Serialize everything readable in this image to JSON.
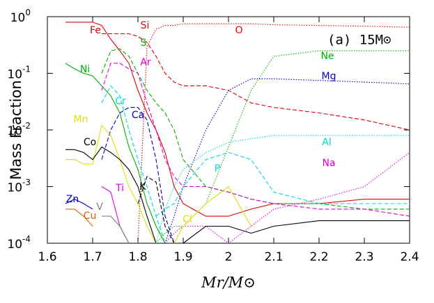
{
  "chart_data": {
    "type": "line",
    "ylabel": "Mass Fraction",
    "xlabel": "Mr/M⊙",
    "annotation": "(a) 15M⊙",
    "log_y": true,
    "xlim": [
      1.6,
      2.4
    ],
    "ylim": [
      0.0001,
      1
    ],
    "xticks": [
      1.6,
      1.7,
      1.8,
      1.9,
      2,
      2.1,
      2.2,
      2.3,
      2.4
    ],
    "yticks": [
      {
        "value": 0.0001,
        "label": "10^-4"
      },
      {
        "value": 0.001,
        "label": "10^-3"
      },
      {
        "value": 0.01,
        "label": "10^-2"
      },
      {
        "value": 0.1,
        "label": "10^-1"
      },
      {
        "value": 1,
        "label": "10^0"
      }
    ],
    "x": [
      1.64,
      1.66,
      1.68,
      1.7,
      1.72,
      1.74,
      1.76,
      1.78,
      1.8,
      1.82,
      1.84,
      1.86,
      1.88,
      1.9,
      1.95,
      2.0,
      2.05,
      2.1,
      2.2,
      2.3,
      2.4
    ],
    "series": [
      {
        "name": "Fe",
        "color": "#e00000",
        "style": "solid",
        "values": [
          0.8,
          0.8,
          0.8,
          0.8,
          0.7,
          0.4,
          0.25,
          0.15,
          0.05,
          0.02,
          0.01,
          0.004,
          0.001,
          0.0005,
          0.0003,
          0.0003,
          0.0004,
          0.0005,
          0.0005,
          0.0006,
          0.0006
        ]
      },
      {
        "name": "Si",
        "color": "#e00000",
        "style": "dashed",
        "values": [
          null,
          null,
          null,
          null,
          0.5,
          0.5,
          0.5,
          0.5,
          0.45,
          0.35,
          0.2,
          0.1,
          0.07,
          0.06,
          0.06,
          0.05,
          0.03,
          0.025,
          0.02,
          0.015,
          0.01
        ]
      },
      {
        "name": "O",
        "color": "#e00000",
        "style": "dotted",
        "values": [
          null,
          null,
          null,
          null,
          null,
          null,
          null,
          null,
          0.0001,
          0.3,
          0.6,
          0.7,
          0.7,
          0.75,
          0.75,
          0.75,
          0.75,
          0.72,
          0.7,
          0.68,
          0.65
        ]
      },
      {
        "name": "S",
        "color": "#00b000",
        "style": "dashed",
        "values": [
          null,
          null,
          null,
          null,
          0.1,
          0.25,
          0.27,
          0.2,
          0.1,
          0.05,
          0.03,
          0.02,
          0.01,
          0.003,
          0.001,
          0.0008,
          0.0006,
          0.0005,
          0.0005,
          0.0004,
          0.0004
        ]
      },
      {
        "name": "Ne",
        "color": "#00b000",
        "style": "dotted",
        "values": [
          null,
          null,
          null,
          null,
          null,
          null,
          null,
          null,
          null,
          null,
          0.0001,
          0.00015,
          0.0002,
          0.0002,
          0.0005,
          0.005,
          0.05,
          0.2,
          0.25,
          0.25,
          0.25
        ]
      },
      {
        "name": "Ni",
        "color": "#00b000",
        "style": "solid",
        "values": [
          0.15,
          0.12,
          0.1,
          0.09,
          0.06,
          0.04,
          0.02,
          0.005,
          0.002,
          0.0005,
          0.0002,
          0.0001,
          null,
          null,
          null,
          null,
          null,
          null,
          null,
          null,
          null
        ]
      },
      {
        "name": "Ar",
        "color": "#e000e0",
        "style": "dashed",
        "values": [
          null,
          null,
          null,
          null,
          0.05,
          0.15,
          0.15,
          0.12,
          0.1,
          0.03,
          0.01,
          0.003,
          0.0015,
          0.001,
          0.001,
          0.0008,
          0.0006,
          0.0005,
          0.0004,
          0.0004,
          0.0003
        ]
      },
      {
        "name": "Mg",
        "color": "#0000c0",
        "style": "dotted",
        "values": [
          null,
          null,
          null,
          null,
          null,
          null,
          null,
          null,
          null,
          null,
          null,
          0.0001,
          0.0003,
          0.001,
          0.01,
          0.05,
          0.08,
          0.08,
          0.075,
          0.07,
          0.065
        ]
      },
      {
        "name": "Cr",
        "color": "#00d8e0",
        "style": "dashed",
        "values": [
          null,
          null,
          null,
          null,
          0.03,
          0.06,
          0.04,
          0.01,
          0.003,
          0.001,
          0.0003,
          0.0001,
          null,
          null,
          null,
          null,
          null,
          null,
          null,
          null,
          null
        ]
      },
      {
        "name": "Ca",
        "color": "#0000c0",
        "style": "dashed",
        "values": [
          null,
          null,
          null,
          null,
          0.003,
          0.01,
          0.02,
          0.025,
          0.025,
          0.015,
          0.003,
          0.0003,
          0.0001,
          null,
          null,
          null,
          null,
          null,
          null,
          null,
          null
        ]
      },
      {
        "name": "Mn",
        "color": "#e0e000",
        "style": "solid",
        "values": [
          0.003,
          0.003,
          0.0025,
          0.0025,
          0.012,
          0.008,
          0.003,
          0.001,
          0.0005,
          0.0002,
          0.0001,
          null,
          null,
          null,
          null,
          null,
          null,
          null,
          null,
          null,
          null
        ]
      },
      {
        "name": "Co",
        "color": "#000000",
        "style": "solid",
        "values": [
          0.0045,
          0.0045,
          0.004,
          0.003,
          0.005,
          0.004,
          0.003,
          0.002,
          0.001,
          0.0003,
          0.0001,
          null,
          null,
          0.0001,
          0.0002,
          0.0002,
          0.00015,
          0.0002,
          0.00025,
          0.00025,
          0.00025
        ]
      },
      {
        "name": "Al",
        "color": "#00d8e0",
        "style": "dotted",
        "values": [
          null,
          null,
          null,
          null,
          null,
          null,
          null,
          null,
          null,
          null,
          0.0001,
          0.0004,
          0.001,
          0.002,
          0.004,
          0.006,
          0.007,
          0.008,
          0.008,
          0.008,
          0.008
        ]
      },
      {
        "name": "Na",
        "color": "#e000e0",
        "style": "dotted",
        "values": [
          null,
          null,
          null,
          null,
          null,
          null,
          null,
          null,
          null,
          null,
          null,
          0.0001,
          0.00015,
          0.0002,
          0.0002,
          0.0001,
          0.0002,
          0.0004,
          0.0006,
          0.001,
          0.004
        ]
      },
      {
        "name": "P",
        "color": "#00d8e0",
        "style": "dashed",
        "values": [
          null,
          null,
          null,
          null,
          null,
          null,
          null,
          null,
          null,
          null,
          0.0003,
          0.0004,
          0.0005,
          0.001,
          0.003,
          0.004,
          0.003,
          0.0008,
          0.0005,
          0.0005,
          0.0005
        ]
      },
      {
        "name": "Ti",
        "color": "#e000e0",
        "style": "solid",
        "values": [
          null,
          null,
          null,
          null,
          0.001,
          0.0008,
          0.0002,
          0.0001,
          null,
          null,
          null,
          null,
          null,
          null,
          null,
          null,
          null,
          null,
          null,
          null,
          null
        ]
      },
      {
        "name": "K",
        "color": "#000000",
        "style": "dashed",
        "values": [
          null,
          null,
          null,
          null,
          null,
          null,
          null,
          null,
          0.0005,
          0.0015,
          0.0012,
          0.0002,
          0.0001,
          null,
          null,
          null,
          null,
          null,
          null,
          null,
          null
        ]
      },
      {
        "name": "Cl",
        "color": "#e0e000",
        "style": "solid",
        "values": [
          null,
          null,
          null,
          null,
          null,
          null,
          null,
          null,
          null,
          null,
          null,
          null,
          0.0001,
          0.0002,
          0.0005,
          0.001,
          0.0002,
          null,
          null,
          null,
          null
        ]
      },
      {
        "name": "Zn",
        "color": "#0000c0",
        "style": "solid",
        "values": [
          0.0005,
          0.0006,
          0.0005,
          0.0004,
          null,
          null,
          null,
          null,
          null,
          null,
          null,
          null,
          null,
          null,
          null,
          null,
          null,
          null,
          null,
          null,
          null
        ]
      },
      {
        "name": "V",
        "color": "#808080",
        "style": "solid",
        "values": [
          null,
          null,
          null,
          null,
          0.0003,
          0.0003,
          0.0002,
          0.0001,
          null,
          null,
          null,
          null,
          null,
          null,
          null,
          null,
          null,
          null,
          null,
          null,
          null
        ]
      },
      {
        "name": "Cu",
        "color": "#e06000",
        "style": "solid",
        "values": [
          0.0004,
          0.0004,
          0.0003,
          0.0002,
          null,
          null,
          null,
          null,
          null,
          null,
          null,
          null,
          null,
          null,
          null,
          null,
          null,
          null,
          null,
          null,
          null
        ]
      }
    ]
  }
}
